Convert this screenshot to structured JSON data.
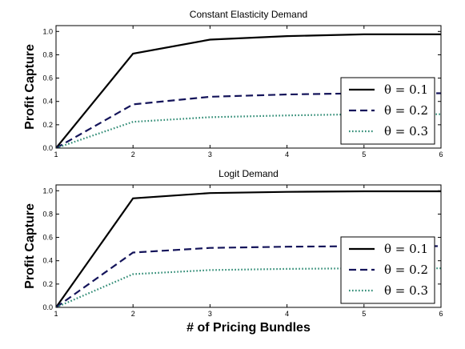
{
  "chart_data": [
    {
      "type": "line",
      "title": "Constant Elasticity Demand",
      "xlabel": "",
      "ylabel": "Profit Capture",
      "x": [
        1,
        2,
        3,
        4,
        5,
        6
      ],
      "xlim": [
        1,
        6
      ],
      "ylim": [
        0,
        1.05
      ],
      "xticks": [
        "1",
        "2",
        "3",
        "4",
        "5",
        "6"
      ],
      "yticks": [
        "0.0",
        "0.2",
        "0.4",
        "0.6",
        "0.8",
        "1.0"
      ],
      "legend_position": "right",
      "grid": false,
      "series": [
        {
          "name": "θ = 0.1",
          "style": "solid",
          "color": "#000000",
          "values": [
            0.0,
            0.81,
            0.93,
            0.96,
            0.975,
            0.975
          ]
        },
        {
          "name": "θ = 0.2",
          "style": "dashed",
          "color": "#14145a",
          "values": [
            0.0,
            0.375,
            0.44,
            0.46,
            0.47,
            0.47
          ]
        },
        {
          "name": "θ = 0.3",
          "style": "dotted",
          "color": "#2e8b74",
          "values": [
            0.0,
            0.225,
            0.265,
            0.28,
            0.29,
            0.29
          ]
        }
      ]
    },
    {
      "type": "line",
      "title": "Logit Demand",
      "xlabel": "# of Pricing Bundles",
      "ylabel": "Profit Capture",
      "x": [
        1,
        2,
        3,
        4,
        5,
        6
      ],
      "xlim": [
        1,
        6
      ],
      "ylim": [
        0,
        1.05
      ],
      "xticks": [
        "1",
        "2",
        "3",
        "4",
        "5",
        "6"
      ],
      "yticks": [
        "0.0",
        "0.2",
        "0.4",
        "0.6",
        "0.8",
        "1.0"
      ],
      "legend_position": "right",
      "grid": false,
      "series": [
        {
          "name": "θ = 0.1",
          "style": "solid",
          "color": "#000000",
          "values": [
            0.0,
            0.935,
            0.98,
            0.99,
            0.995,
            0.995
          ]
        },
        {
          "name": "θ = 0.2",
          "style": "dashed",
          "color": "#14145a",
          "values": [
            0.0,
            0.47,
            0.51,
            0.52,
            0.525,
            0.525
          ]
        },
        {
          "name": "θ = 0.3",
          "style": "dotted",
          "color": "#2e8b74",
          "values": [
            0.0,
            0.285,
            0.32,
            0.33,
            0.335,
            0.335
          ]
        }
      ]
    }
  ]
}
